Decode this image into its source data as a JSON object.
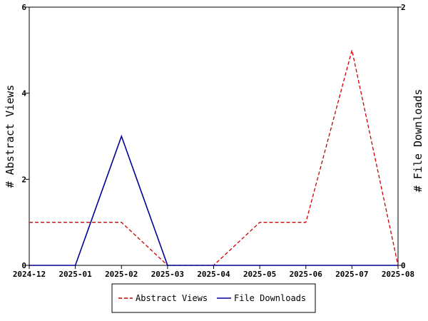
{
  "chart_data": {
    "type": "line",
    "x": [
      "2024-12",
      "2025-01",
      "2025-02",
      "2025-03",
      "2025-04",
      "2025-05",
      "2025-06",
      "2025-07",
      "2025-08"
    ],
    "y_left": {
      "label": "# Abstract Views",
      "range": [
        0,
        6
      ],
      "ticks": [
        "0",
        "2",
        "4",
        "6"
      ]
    },
    "y_right": {
      "label": "# File Downloads",
      "range": [
        0,
        2
      ],
      "ticks": [
        "0",
        "2"
      ]
    },
    "series": [
      {
        "name": "Abstract Views",
        "axis": "left",
        "color": "#cc0000",
        "dash": "dashed",
        "values": [
          1,
          1,
          1,
          0,
          0,
          1,
          1,
          5,
          0
        ]
      },
      {
        "name": "File Downloads",
        "axis": "right",
        "color": "#000099",
        "dash": "solid",
        "values": [
          0,
          0,
          1,
          0,
          0,
          0,
          0,
          0,
          0
        ]
      }
    ],
    "grid": false,
    "legend": "bottom-center"
  }
}
